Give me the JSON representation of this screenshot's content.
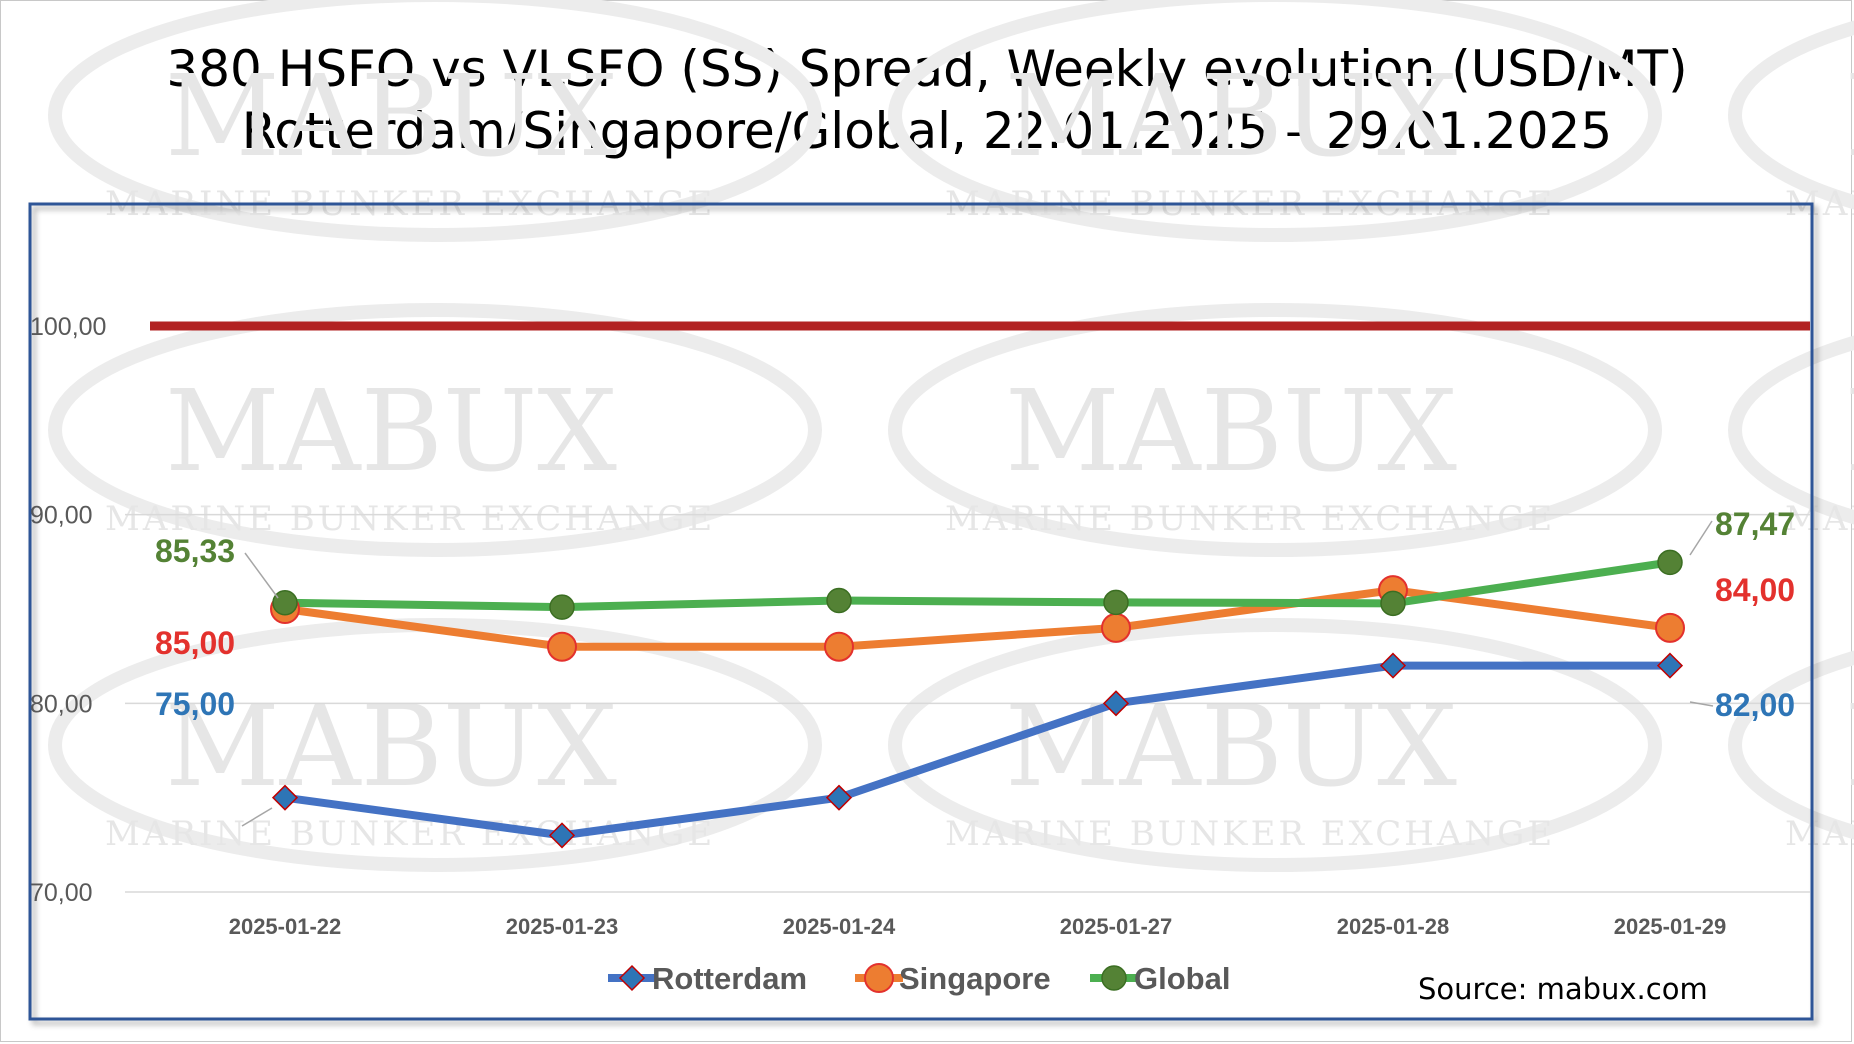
{
  "title_line1": "380 HSFO vs VLSFO (SS) Spread, Weekly evolution (USD/MT)",
  "title_line2": "Rotterdam/Singapore/Global, 22.01.2025 – 29.01.2025",
  "source": "Source: mabux.com",
  "watermark": {
    "brand": "MABUX",
    "tagline": "MARINE BUNKER EXCHANGE"
  },
  "chart_data": {
    "type": "line",
    "x": [
      "2025-01-22",
      "2025-01-23",
      "2025-01-24",
      "2025-01-27",
      "2025-01-28",
      "2025-01-29"
    ],
    "ylim": [
      70,
      100
    ],
    "yticks": [
      "100,00",
      "90,00",
      "80,00",
      "70,00"
    ],
    "ytick_values": [
      100,
      90,
      80,
      70
    ],
    "grid": true,
    "legend_position": "bottom",
    "reference_line": {
      "value": 100,
      "color": "#b22222"
    },
    "series": [
      {
        "name": "Rotterdam",
        "color": "#4472c4",
        "marker": "diamond",
        "label_color": "#2e75b6",
        "values": [
          75,
          73,
          75,
          80,
          82,
          82
        ],
        "start_label": "75,00",
        "end_label": "82,00"
      },
      {
        "name": "Singapore",
        "color": "#ed7d31",
        "marker": "circle",
        "label_color": "#e3312d",
        "values": [
          85,
          83,
          83,
          84,
          86,
          84
        ],
        "start_label": "85,00",
        "end_label": "84,00"
      },
      {
        "name": "Global",
        "color": "#4caf50",
        "marker": "circle-dark",
        "label_color": "#548235",
        "values": [
          85.33,
          85.1,
          85.45,
          85.35,
          85.3,
          87.47
        ],
        "start_label": "85,33",
        "end_label": "87,47"
      }
    ]
  }
}
